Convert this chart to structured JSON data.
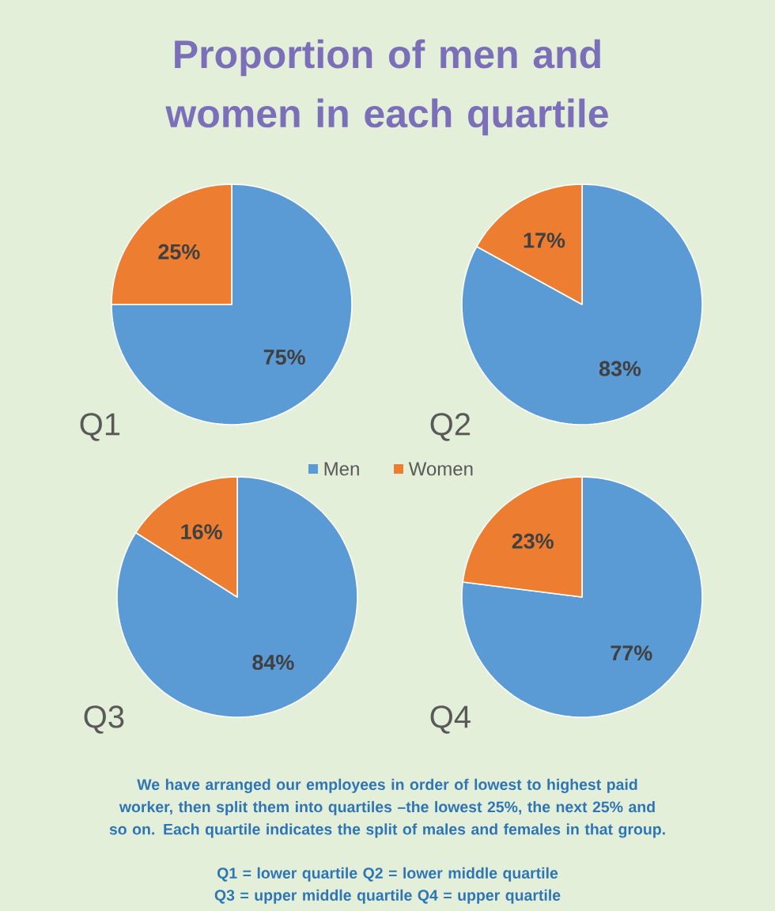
{
  "chart_data": [
    {
      "type": "other",
      "title": "Proportion of men and women in each quartile",
      "annotations": [
        "We have arranged our employees in order of lowest to highest paid worker, then split them into quartiles –the lowest 25%, the next 25% and so on. Each quartile indicates the split of males and females in that group.",
        "Q1 = lower quartile Q2 = lower middle quartile",
        "Q3 = upper middle quartile Q4 = upper quartile"
      ]
    },
    {
      "type": "pie",
      "xlabel": "Q1",
      "categories": [
        "Men",
        "Women"
      ],
      "values": [
        75,
        25
      ],
      "colors": [
        "#5b9bd5",
        "#ed7d31"
      ],
      "value_labels": [
        "75%",
        "25%"
      ],
      "legend": "bottom"
    },
    {
      "type": "pie",
      "xlabel": "Q2",
      "values": [
        83,
        17
      ],
      "colors": [
        "#5b9bd5",
        "#ed7d31"
      ],
      "value_labels": [
        "83%",
        "17%"
      ]
    },
    {
      "type": "pie",
      "xlabel": "Q3",
      "values": [
        84,
        16
      ],
      "colors": [
        "#5b9bd5",
        "#ed7d31"
      ],
      "value_labels": [
        "84%",
        "16%"
      ]
    },
    {
      "type": "pie",
      "xlabel": "Q4",
      "values": [
        77,
        23
      ],
      "colors": [
        "#5b9bd5",
        "#ed7d31"
      ],
      "value_labels": [
        "77%",
        "23%"
      ]
    }
  ]
}
